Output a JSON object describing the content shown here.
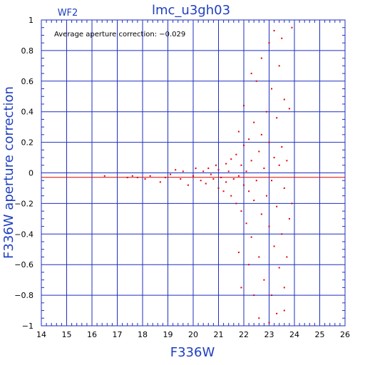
{
  "chart_data": {
    "type": "scatter",
    "title": "lmc_u3gh03",
    "corner_label": "WF2",
    "xlabel": "F336W",
    "ylabel": "F336W aperture correction",
    "xlim": [
      14,
      26
    ],
    "ylim": [
      -1,
      1
    ],
    "x_ticks": [
      "14",
      "15",
      "16",
      "17",
      "18",
      "19",
      "20",
      "21",
      "22",
      "23",
      "24",
      "25",
      "26"
    ],
    "y_ticks": [
      "1",
      "0.8",
      "0.6",
      "0.4",
      "0.2",
      "0",
      "−0.2",
      "−0.4",
      "−0.6",
      "−0.8",
      "−1"
    ],
    "annotation": "Average aperture correction: −0.029",
    "average_line": -0.029,
    "zero_line": 0,
    "grid": true,
    "colors": {
      "axes": "#1f2fbf",
      "points": "#e00000",
      "average_line": "#e00000"
    },
    "points": [
      [
        16.5,
        -0.02
      ],
      [
        17.4,
        -0.03
      ],
      [
        17.6,
        -0.02
      ],
      [
        17.8,
        -0.03
      ],
      [
        18.1,
        -0.04
      ],
      [
        18.3,
        -0.02
      ],
      [
        18.7,
        -0.06
      ],
      [
        18.9,
        -0.03
      ],
      [
        19.1,
        -0.01
      ],
      [
        19.3,
        0.02
      ],
      [
        19.5,
        -0.04
      ],
      [
        19.6,
        0.01
      ],
      [
        19.8,
        -0.08
      ],
      [
        20.0,
        -0.02
      ],
      [
        20.1,
        0.03
      ],
      [
        20.3,
        -0.05
      ],
      [
        20.4,
        0.01
      ],
      [
        20.5,
        -0.07
      ],
      [
        20.6,
        0.03
      ],
      [
        20.7,
        -0.01
      ],
      [
        20.8,
        -0.04
      ],
      [
        20.9,
        0.05
      ],
      [
        21.0,
        -0.1
      ],
      [
        21.0,
        0.02
      ],
      [
        21.1,
        -0.03
      ],
      [
        21.2,
        -0.12
      ],
      [
        21.3,
        0.06
      ],
      [
        21.3,
        -0.06
      ],
      [
        21.4,
        0.01
      ],
      [
        21.5,
        -0.15
      ],
      [
        21.5,
        0.09
      ],
      [
        21.6,
        -0.04
      ],
      [
        21.7,
        -0.2
      ],
      [
        21.7,
        0.12
      ],
      [
        21.8,
        -0.02
      ],
      [
        21.8,
        0.27
      ],
      [
        21.9,
        -0.25
      ],
      [
        21.9,
        0.05
      ],
      [
        22.0,
        -0.08
      ],
      [
        22.0,
        0.18
      ],
      [
        22.0,
        0.44
      ],
      [
        22.1,
        -0.33
      ],
      [
        22.1,
        0.01
      ],
      [
        22.2,
        -0.12
      ],
      [
        22.2,
        0.22
      ],
      [
        22.3,
        -0.42
      ],
      [
        22.3,
        0.08
      ],
      [
        22.4,
        -0.18
      ],
      [
        22.4,
        0.33
      ],
      [
        22.5,
        -0.05
      ],
      [
        22.5,
        0.6
      ],
      [
        22.6,
        -0.55
      ],
      [
        22.6,
        0.14
      ],
      [
        22.7,
        -0.27
      ],
      [
        22.7,
        0.25
      ],
      [
        22.8,
        -0.7
      ],
      [
        22.8,
        0.03
      ],
      [
        22.9,
        -0.15
      ],
      [
        22.9,
        0.4
      ],
      [
        23.0,
        -0.35
      ],
      [
        23.0,
        0.2
      ],
      [
        23.0,
        0.85
      ],
      [
        23.1,
        -0.8
      ],
      [
        23.1,
        -0.05
      ],
      [
        23.1,
        0.55
      ],
      [
        23.2,
        -0.48
      ],
      [
        23.2,
        0.1
      ],
      [
        23.2,
        0.93
      ],
      [
        23.3,
        -0.92
      ],
      [
        23.3,
        -0.22
      ],
      [
        23.3,
        0.36
      ],
      [
        23.4,
        -0.62
      ],
      [
        23.4,
        0.05
      ],
      [
        23.4,
        0.7
      ],
      [
        23.5,
        -0.4
      ],
      [
        23.5,
        0.17
      ],
      [
        23.5,
        0.88
      ],
      [
        23.6,
        -0.75
      ],
      [
        23.6,
        -0.1
      ],
      [
        23.6,
        0.48
      ],
      [
        23.7,
        -0.55
      ],
      [
        23.7,
        0.08
      ],
      [
        23.8,
        -0.3
      ],
      [
        23.8,
        0.42
      ],
      [
        23.9,
        -0.2
      ],
      [
        23.9,
        0.95
      ],
      [
        22.2,
        -0.6
      ],
      [
        22.4,
        -0.8
      ],
      [
        22.6,
        -0.95
      ],
      [
        23.0,
        -0.98
      ],
      [
        21.8,
        -0.52
      ],
      [
        21.9,
        -0.75
      ],
      [
        22.3,
        0.65
      ],
      [
        22.7,
        0.75
      ],
      [
        23.6,
        -0.9
      ]
    ]
  }
}
